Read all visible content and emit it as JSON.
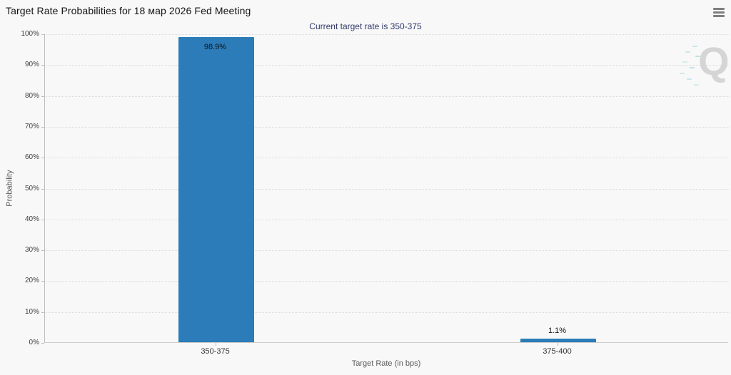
{
  "header": {
    "title": "Target Rate Probabilities for 18 мар 2026 Fed Meeting",
    "subtitle": "Current target rate is 350-375"
  },
  "chart_data": {
    "type": "bar",
    "title": "Target Rate Probabilities for 18 мар 2026 Fed Meeting",
    "subtitle": "Current target rate is 350-375",
    "categories": [
      "350-375",
      "375-400"
    ],
    "values": [
      98.9,
      1.1
    ],
    "bar_labels": [
      "98.9%",
      "1.1%"
    ],
    "xlabel": "Target Rate (in bps)",
    "ylabel": "Probability",
    "ylim": [
      0,
      100
    ],
    "ytick_step": 10,
    "ytick_labels": [
      "0%",
      "10%",
      "20%",
      "30%",
      "40%",
      "50%",
      "60%",
      "70%",
      "80%",
      "90%",
      "100%"
    ],
    "grid": "horizontal-dotted",
    "legend_position": "none",
    "bar_color": "#2b7cb8"
  },
  "icons": {
    "menu": "hamburger-icon",
    "watermark_letter": "Q"
  }
}
